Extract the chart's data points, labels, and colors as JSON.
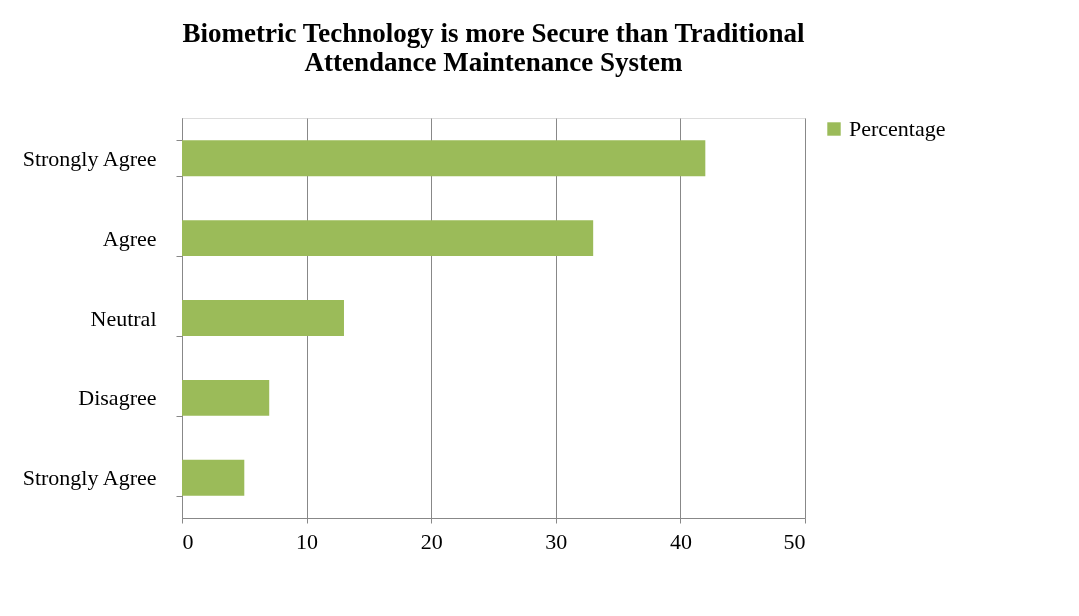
{
  "chart_data": {
    "type": "bar",
    "orientation": "horizontal",
    "title": "Biometric Technology is more Secure than Traditional Attendance Maintenance System",
    "categories": [
      "Strongly Agree",
      "Agree",
      "Neutral",
      "Disagree",
      "Strongly Agree"
    ],
    "series": [
      {
        "name": "Percentage",
        "color": "#9bbb59",
        "values": [
          42,
          33,
          13,
          7,
          5
        ]
      }
    ],
    "xlim": [
      0,
      50
    ],
    "xticks": [
      0,
      10,
      20,
      30,
      40,
      50
    ],
    "grid": "x",
    "legend": "right"
  }
}
